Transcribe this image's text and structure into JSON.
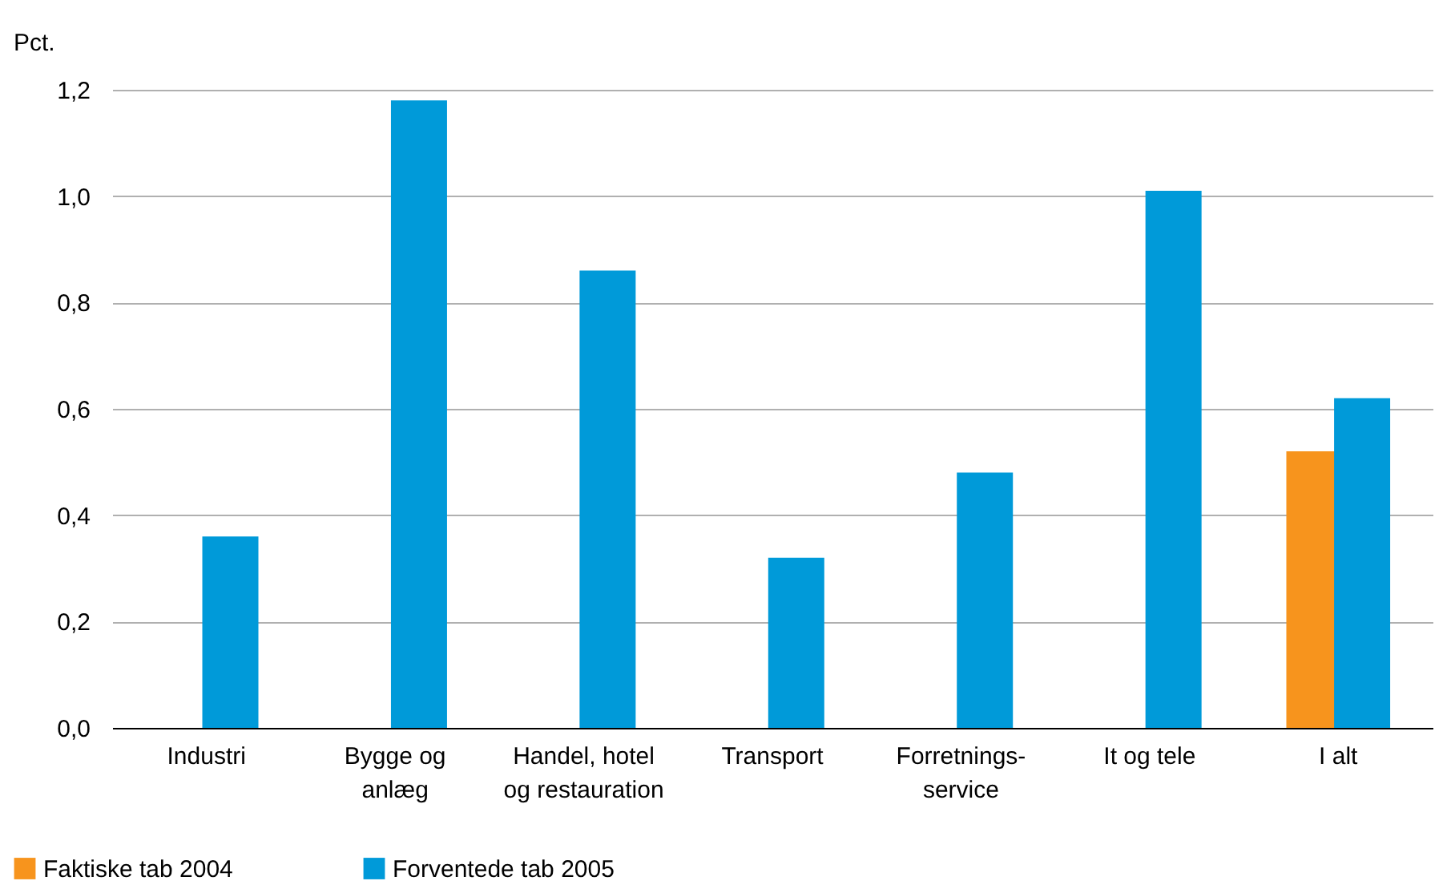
{
  "chart_data": {
    "type": "bar",
    "ylabel": "Pct.",
    "categories": [
      "Industri",
      "Bygge og\nanlæg",
      "Handel, hotel\nog restauration",
      "Transport",
      "Forretnings-\nservice",
      "It og tele",
      "I alt"
    ],
    "series": [
      {
        "name": "Faktiske tab 2004",
        "color": "#f7941d",
        "values": [
          null,
          null,
          null,
          null,
          null,
          null,
          0.52
        ]
      },
      {
        "name": "Forventede tab 2005",
        "color": "#009ad9",
        "values": [
          0.36,
          1.18,
          0.86,
          0.32,
          0.48,
          1.01,
          0.62
        ]
      }
    ],
    "ylim": [
      0,
      1.2
    ],
    "yticks": [
      {
        "value": 0,
        "label": "0,0"
      },
      {
        "value": 0.2,
        "label": "0,2"
      },
      {
        "value": 0.4,
        "label": "0,4"
      },
      {
        "value": 0.6,
        "label": "0,6"
      },
      {
        "value": 0.8,
        "label": "0,8"
      },
      {
        "value": 1,
        "label": "1,0"
      },
      {
        "value": 1.2,
        "label": "1,2"
      }
    ],
    "grid": "y",
    "legend": "bottom left"
  }
}
